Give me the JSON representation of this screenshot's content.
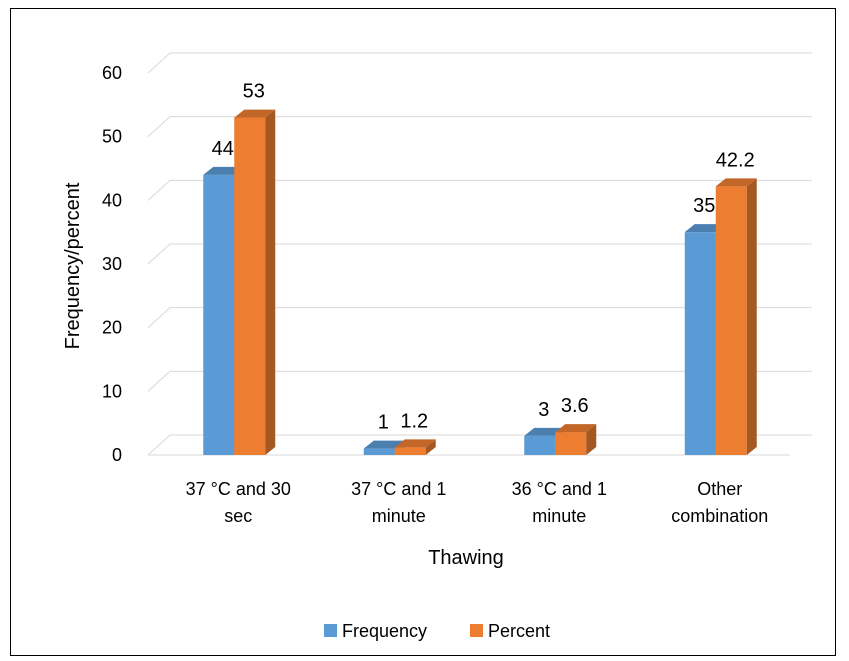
{
  "chart_data": {
    "type": "bar",
    "title": "",
    "xlabel": "Thawing",
    "ylabel": "Frequency/percent",
    "ylim": [
      0,
      60
    ],
    "yticks": [
      0,
      10,
      20,
      30,
      40,
      50,
      60
    ],
    "grid": true,
    "legend_position": "bottom",
    "categories": [
      [
        "37 °C and 30",
        "sec"
      ],
      [
        "37 °C and 1",
        "minute"
      ],
      [
        "36 °C and 1",
        "minute"
      ],
      [
        "Other",
        "combination"
      ]
    ],
    "series": [
      {
        "name": "Frequency",
        "color": "#5B9BD5",
        "values": [
          44,
          1,
          3,
          35
        ],
        "labels": [
          "44",
          "1",
          "3",
          "35"
        ]
      },
      {
        "name": "Percent",
        "color": "#ED7D31",
        "values": [
          53,
          1.2,
          3.6,
          42.2
        ],
        "labels": [
          "53",
          "1.2",
          "3.6",
          "42.2"
        ]
      }
    ]
  }
}
